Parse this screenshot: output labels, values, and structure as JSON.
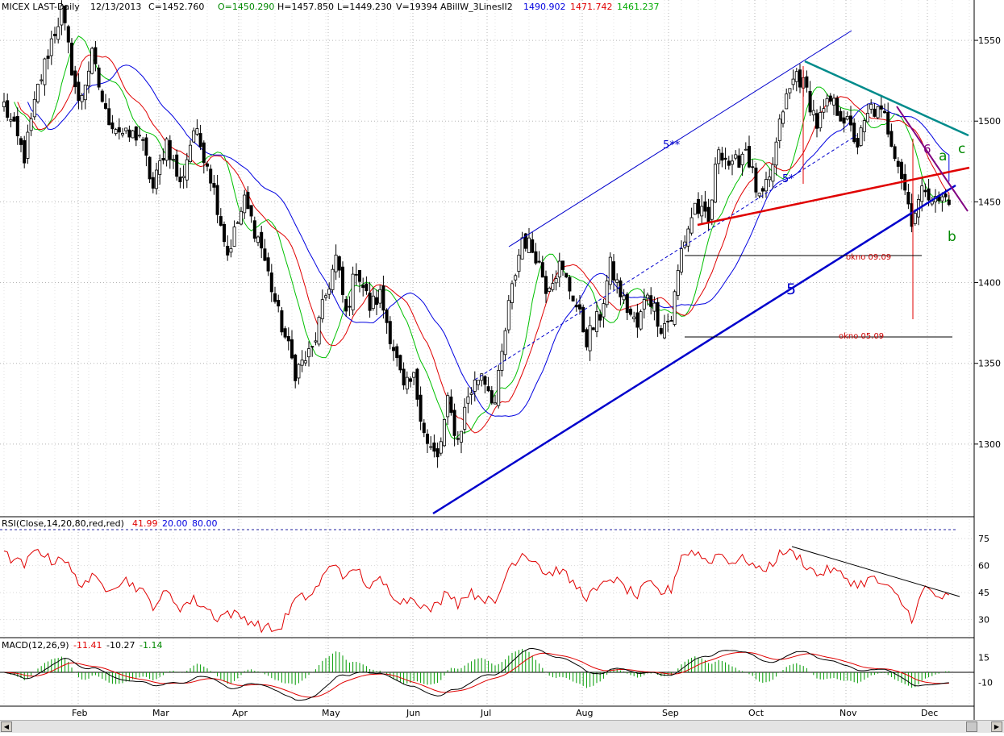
{
  "header": {
    "symbol": "MICEX LAST-Daily",
    "date": "12/13/2013",
    "close": "C=1452.760",
    "open": "O=1450.290",
    "high": "H=1457.850",
    "low": "L=1449.230",
    "volume": "V=19394",
    "indicator": "ABillW_3LinesII2",
    "line_blue": "1490.902",
    "line_red": "1471.742",
    "line_green": "1461.237"
  },
  "colors": {
    "background": "#ffffff",
    "grid": "#b4b4b4",
    "candle": "#000000",
    "ma_green": "#00c000",
    "ma_red": "#e00000",
    "ma_blue": "#0000e0",
    "trend_blue": "#0000cc",
    "trend_red": "#e00000",
    "trend_teal": "#008b8b",
    "trend_purple": "#800080",
    "rsi_line": "#e00000",
    "macd_line": "#000000",
    "signal_line": "#e00000",
    "histogram": "#009900"
  },
  "annotations": {
    "wave_5_2star": "5**",
    "wave_5_1star": "5*",
    "wave_5": "5",
    "wave_6": "6",
    "wave_a": "a",
    "wave_b": "b",
    "wave_c": "c",
    "gap_upper": "okno 09.09",
    "gap_lower": "okno 05.09"
  },
  "rsi_panel": {
    "label": "RSI(Close,14,20,80,red,red)",
    "value": "41.99",
    "lower": "20.00",
    "upper": "80.00"
  },
  "macd_panel": {
    "label": "MACD(12,26,9)",
    "macd": "-11.41",
    "signal": "-10.27",
    "hist": "-1.14"
  },
  "chart_data": {
    "type": "candlestick",
    "title": "MICEX LAST-Daily",
    "months": [
      "Feb",
      "Mar",
      "Apr",
      "May",
      "Jun",
      "Jul",
      "Aug",
      "Sep",
      "Oct",
      "Nov",
      "Dec"
    ],
    "price_axis": {
      "ticks": [
        1300,
        1350,
        1400,
        1450,
        1500,
        1550
      ],
      "ylim": [
        1260,
        1570
      ]
    },
    "rsi_axis": {
      "ticks": [
        30,
        45,
        60,
        75
      ],
      "ylim": [
        20,
        85
      ],
      "bands": [
        20,
        80
      ]
    },
    "macd_axis": {
      "ticks": [
        -10,
        15
      ],
      "ylim": [
        -25,
        25
      ]
    },
    "price_anchors": [
      [
        0,
        1510
      ],
      [
        6,
        1478
      ],
      [
        10,
        1520
      ],
      [
        14,
        1550
      ],
      [
        17,
        1568
      ],
      [
        22,
        1510
      ],
      [
        26,
        1540
      ],
      [
        30,
        1504
      ],
      [
        36,
        1490
      ],
      [
        40,
        1492
      ],
      [
        44,
        1458
      ],
      [
        48,
        1488
      ],
      [
        52,
        1460
      ],
      [
        56,
        1495
      ],
      [
        60,
        1475
      ],
      [
        63,
        1448
      ],
      [
        66,
        1418
      ],
      [
        71,
        1450
      ],
      [
        76,
        1422
      ],
      [
        81,
        1380
      ],
      [
        86,
        1345
      ],
      [
        91,
        1358
      ],
      [
        95,
        1392
      ],
      [
        98,
        1415
      ],
      [
        101,
        1380
      ],
      [
        104,
        1410
      ],
      [
        108,
        1385
      ],
      [
        111,
        1392
      ],
      [
        115,
        1360
      ],
      [
        118,
        1333
      ],
      [
        121,
        1340
      ],
      [
        125,
        1300
      ],
      [
        128,
        1290
      ],
      [
        131,
        1325
      ],
      [
        134,
        1302
      ],
      [
        137,
        1330
      ],
      [
        141,
        1345
      ],
      [
        145,
        1325
      ],
      [
        149,
        1385
      ],
      [
        153,
        1428
      ],
      [
        157,
        1418
      ],
      [
        160,
        1398
      ],
      [
        164,
        1410
      ],
      [
        168,
        1392
      ],
      [
        172,
        1365
      ],
      [
        176,
        1380
      ],
      [
        179,
        1410
      ],
      [
        183,
        1388
      ],
      [
        187,
        1372
      ],
      [
        190,
        1395
      ],
      [
        194,
        1373
      ],
      [
        197,
        1378
      ],
      [
        200,
        1420
      ],
      [
        204,
        1448
      ],
      [
        208,
        1436
      ],
      [
        211,
        1485
      ],
      [
        215,
        1470
      ],
      [
        219,
        1484
      ],
      [
        223,
        1450
      ],
      [
        226,
        1462
      ],
      [
        230,
        1508
      ],
      [
        234,
        1530
      ],
      [
        237,
        1518
      ],
      [
        240,
        1498
      ],
      [
        244,
        1512
      ],
      [
        248,
        1502
      ],
      [
        252,
        1486
      ],
      [
        256,
        1508
      ],
      [
        260,
        1502
      ],
      [
        264,
        1475
      ],
      [
        268,
        1440
      ],
      [
        272,
        1460
      ],
      [
        275,
        1450
      ],
      [
        279,
        1453
      ]
    ],
    "series": [
      {
        "name": "Close",
        "type": "candlestick"
      },
      {
        "name": "",
        "type": "line",
        "value": 1490.902
      },
      {
        "name": "",
        "type": "line",
        "value": 1471.742
      },
      {
        "name": "",
        "type": "line",
        "value": 1461.237
      }
    ],
    "rsi_anchors": [
      [
        0,
        66
      ],
      [
        6,
        60
      ],
      [
        10,
        70
      ],
      [
        14,
        62
      ],
      [
        17,
        66
      ],
      [
        22,
        50
      ],
      [
        26,
        53
      ],
      [
        30,
        48
      ],
      [
        36,
        52
      ],
      [
        40,
        47
      ],
      [
        44,
        38
      ],
      [
        48,
        45
      ],
      [
        52,
        37
      ],
      [
        56,
        41
      ],
      [
        60,
        36
      ],
      [
        63,
        31
      ],
      [
        66,
        34
      ],
      [
        71,
        31
      ],
      [
        76,
        26
      ],
      [
        81,
        24
      ],
      [
        86,
        41
      ],
      [
        91,
        44
      ],
      [
        95,
        56
      ],
      [
        98,
        62
      ],
      [
        101,
        52
      ],
      [
        104,
        59
      ],
      [
        108,
        47
      ],
      [
        111,
        52
      ],
      [
        115,
        44
      ],
      [
        118,
        40
      ],
      [
        121,
        43
      ],
      [
        125,
        35
      ],
      [
        128,
        38
      ],
      [
        131,
        47
      ],
      [
        134,
        39
      ],
      [
        137,
        45
      ],
      [
        141,
        43
      ],
      [
        145,
        38
      ],
      [
        149,
        59
      ],
      [
        153,
        67
      ],
      [
        157,
        63
      ],
      [
        160,
        55
      ],
      [
        164,
        58
      ],
      [
        168,
        50
      ],
      [
        172,
        43
      ],
      [
        176,
        47
      ],
      [
        179,
        54
      ],
      [
        183,
        48
      ],
      [
        187,
        43
      ],
      [
        190,
        50
      ],
      [
        194,
        45
      ],
      [
        197,
        47
      ],
      [
        200,
        66
      ],
      [
        204,
        68
      ],
      [
        208,
        62
      ],
      [
        211,
        67
      ],
      [
        215,
        62
      ],
      [
        219,
        64
      ],
      [
        223,
        57
      ],
      [
        226,
        60
      ],
      [
        230,
        68
      ],
      [
        234,
        66
      ],
      [
        237,
        60
      ],
      [
        240,
        55
      ],
      [
        244,
        58
      ],
      [
        248,
        54
      ],
      [
        252,
        49
      ],
      [
        256,
        53
      ],
      [
        260,
        49
      ],
      [
        264,
        42
      ],
      [
        268,
        31
      ],
      [
        272,
        48
      ],
      [
        275,
        43
      ],
      [
        279,
        42
      ]
    ],
    "gap_levels": [
      {
        "label": "okno 09.09",
        "value": 1424
      },
      {
        "label": "okno 05.09",
        "value": 1376
      }
    ]
  }
}
